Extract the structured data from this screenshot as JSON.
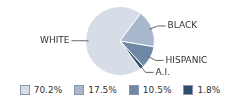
{
  "chart_data": {
    "type": "pie",
    "categories": [
      "WHITE",
      "BLACK",
      "HISPANIC",
      "A.I."
    ],
    "values": [
      70.2,
      17.5,
      10.5,
      1.8
    ],
    "value_labels": [
      "70.2%",
      "17.5%",
      "10.5%",
      "1.8%"
    ],
    "colors": [
      "#d6dde7",
      "#a9b8cc",
      "#6f88a6",
      "#2c4d6e"
    ],
    "legend": "bottom"
  }
}
